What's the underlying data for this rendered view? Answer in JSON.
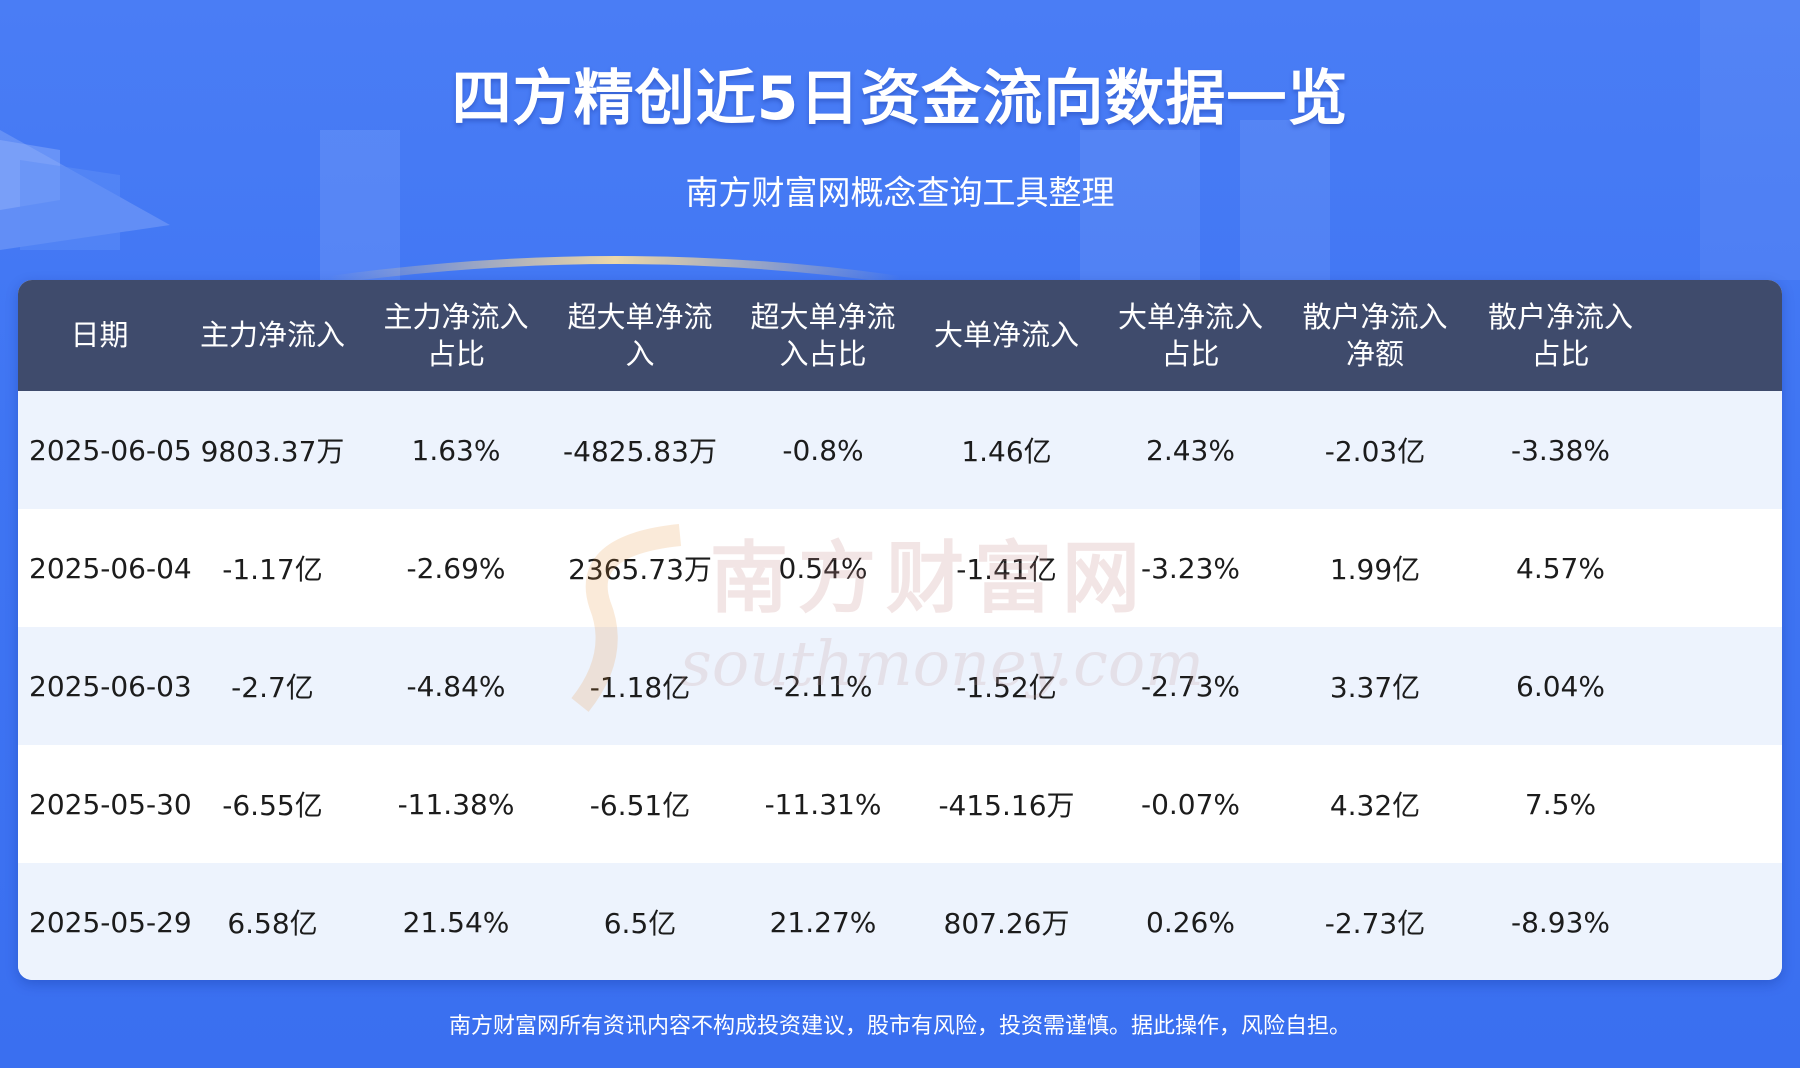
{
  "title": "四方精创近5日资金流向数据一览",
  "subtitle": "南方财富网概念查询工具整理",
  "table": {
    "headers": [
      [
        "日期"
      ],
      [
        "主力净流入"
      ],
      [
        "主力净流入",
        "占比"
      ],
      [
        "超大单净流",
        "入"
      ],
      [
        "超大单净流",
        "入占比"
      ],
      [
        "大单净流入"
      ],
      [
        "大单净流入",
        "占比"
      ],
      [
        "散户净流入",
        "净额"
      ],
      [
        "散户净流入",
        "占比"
      ]
    ],
    "rows": [
      [
        "2025-06-05",
        "9803.37万",
        "1.63%",
        "-4825.83万",
        "-0.8%",
        "1.46亿",
        "2.43%",
        "-2.03亿",
        "-3.38%"
      ],
      [
        "2025-06-04",
        "-1.17亿",
        "-2.69%",
        "2365.73万",
        "0.54%",
        "-1.41亿",
        "-3.23%",
        "1.99亿",
        "4.57%"
      ],
      [
        "2025-06-03",
        "-2.7亿",
        "-4.84%",
        "-1.18亿",
        "-2.11%",
        "-1.52亿",
        "-2.73%",
        "3.37亿",
        "6.04%"
      ],
      [
        "2025-05-30",
        "-6.55亿",
        "-11.38%",
        "-6.51亿",
        "-11.31%",
        "-415.16万",
        "-0.07%",
        "4.32亿",
        "7.5%"
      ],
      [
        "2025-05-29",
        "6.58亿",
        "21.54%",
        "6.5亿",
        "21.27%",
        "807.26万",
        "0.26%",
        "-2.73亿",
        "-8.93%"
      ]
    ]
  },
  "watermark": {
    "cn": "南方财富网",
    "en": "southmoney.com"
  },
  "footer": "南方财富网所有资讯内容不构成投资建议，股市有风险，投资需谨慎。据此操作，风险自担。",
  "colors": {
    "background": "#4a7df5",
    "header_bg": "#3f4b6c",
    "row_alt": "#edf3fd",
    "text": "#1c1c1c"
  }
}
